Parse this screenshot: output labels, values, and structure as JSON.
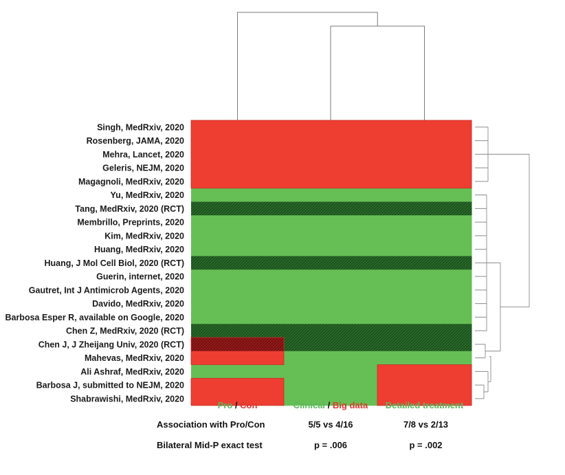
{
  "chart_data": {
    "type": "heatmap",
    "rows": [
      "Singh, MedRxiv, 2020",
      "Rosenberg, JAMA, 2020",
      "Mehra, Lancet, 2020",
      "Geleris, NEJM, 2020",
      "Magagnoli, MedRxiv, 2020",
      "Yu, MedRxiv, 2020",
      "Tang, MedRxiv, 2020 (RCT)",
      "Membrillo, Preprints, 2020",
      "Kim, MedRxiv, 2020",
      "Huang, MedRxiv, 2020",
      "Huang, J Mol Cell Biol, 2020 (RCT)",
      "Guerin, internet, 2020",
      "Gautret, Int J Antimicrob Agents, 2020",
      "Davido, MedRxiv, 2020",
      "Barbosa Esper R, available on Google, 2020",
      "Chen Z, MedRxiv, 2020 (RCT)",
      "Chen J, J Zheijang Univ, 2020 (RCT)",
      "Mahevas, MedRxiv, 2020",
      "Ali Ashraf, MedRxiv, 2020",
      "Barbosa J, submitted to NEJM, 2020",
      "Shabrawishi, MedRxiv, 2020"
    ],
    "rct": [
      false,
      false,
      false,
      false,
      false,
      false,
      true,
      false,
      false,
      false,
      true,
      false,
      false,
      false,
      false,
      true,
      true,
      false,
      false,
      false,
      false
    ],
    "columns": [
      {
        "parts": [
          {
            "text": "Pro",
            "color": "#5cb85c"
          },
          {
            "text": " / ",
            "color": "#111111"
          },
          {
            "text": "Con",
            "color": "#e03a2f"
          }
        ]
      },
      {
        "parts": [
          {
            "text": "Clinical",
            "color": "#5cb85c"
          },
          {
            "text": " / ",
            "color": "#111111"
          },
          {
            "text": "Big data",
            "color": "#e03a2f"
          }
        ]
      },
      {
        "parts": [
          {
            "text": "Detailed treatment",
            "color": "#5cb85c"
          }
        ]
      }
    ],
    "values": [
      [
        0,
        0,
        0
      ],
      [
        0,
        0,
        0
      ],
      [
        0,
        0,
        0
      ],
      [
        0,
        0,
        0
      ],
      [
        0,
        0,
        0
      ],
      [
        1,
        1,
        1
      ],
      [
        1,
        1,
        1
      ],
      [
        1,
        1,
        1
      ],
      [
        1,
        1,
        1
      ],
      [
        1,
        1,
        1
      ],
      [
        1,
        1,
        1
      ],
      [
        1,
        1,
        1
      ],
      [
        1,
        1,
        1
      ],
      [
        1,
        1,
        1
      ],
      [
        1,
        1,
        1
      ],
      [
        1,
        1,
        1
      ],
      [
        0,
        1,
        1
      ],
      [
        0,
        1,
        1
      ],
      [
        1,
        1,
        0
      ],
      [
        0,
        1,
        0
      ],
      [
        0,
        1,
        0
      ]
    ],
    "legend": {
      "1": "green",
      "0": "red"
    },
    "colors": {
      "green": "#66bf55",
      "red": "#ee3e32",
      "red_dark": "#8b1515",
      "green_dark": "#1f5a22",
      "tree": "#7a7a7a"
    },
    "footer": [
      {
        "label": "Association with Pro/Con",
        "col2": "5/5 vs 4/16",
        "col3": "7/8 vs 2/13"
      },
      {
        "label": "Bilateral Mid-P exact test",
        "col2": "p = .006",
        "col3": "p = .002"
      }
    ]
  }
}
